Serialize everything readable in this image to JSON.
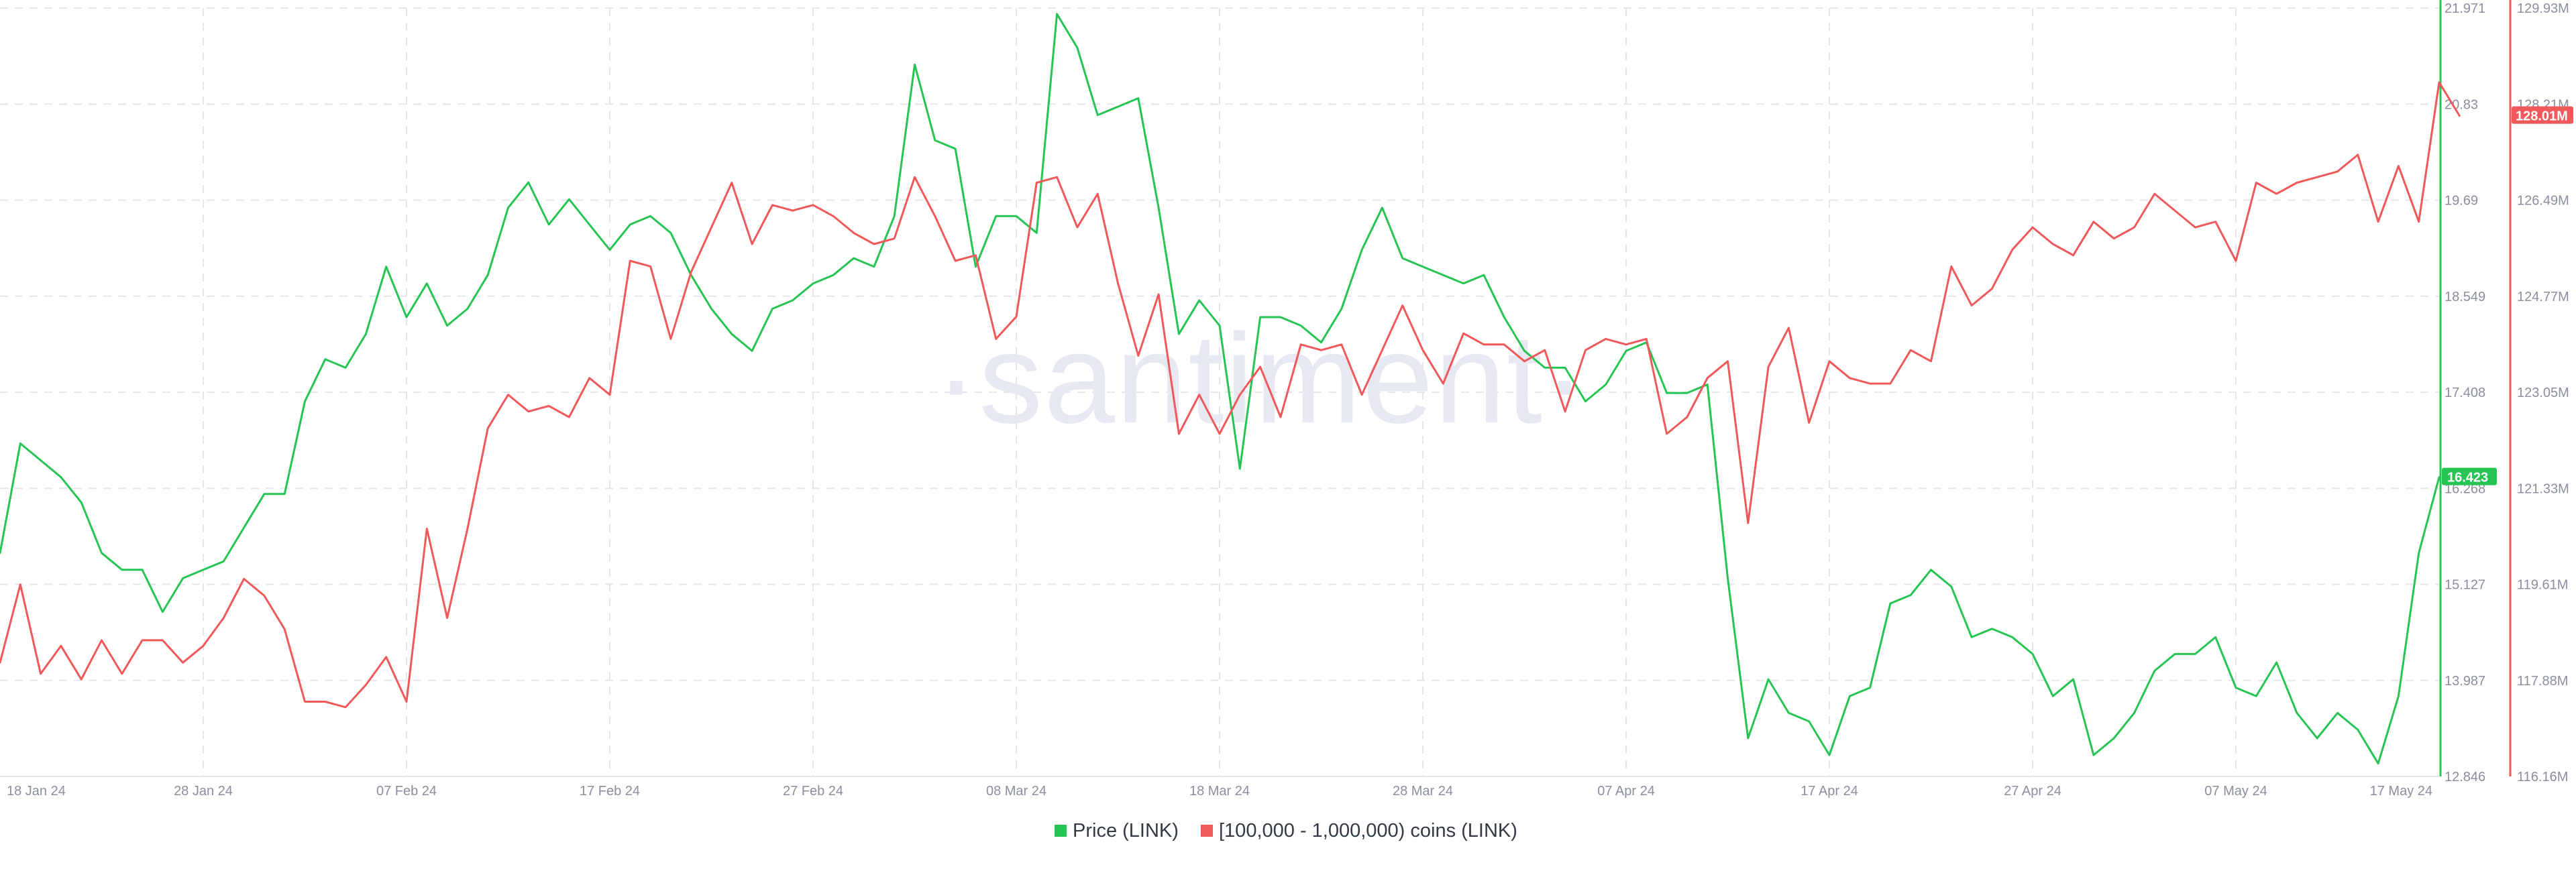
{
  "watermark": "·santiment·",
  "colors": {
    "price": "#26c453",
    "holders": "#f0585a",
    "grid": "#e4e6eb",
    "axis_text": "#8a8f9e",
    "watermark": "#e6e8f2"
  },
  "chart_data": {
    "type": "line",
    "title": "",
    "x_tick_labels": [
      "18 Jan 24",
      "28 Jan 24",
      "07 Feb 24",
      "17 Feb 24",
      "27 Feb 24",
      "08 Mar 24",
      "18 Mar 24",
      "28 Mar 24",
      "07 Apr 24",
      "17 Apr 24",
      "27 Apr 24",
      "07 May 24",
      "17 May 24"
    ],
    "x_range": [
      "2024-01-18",
      "2024-05-17"
    ],
    "legend_position": "bottom-center",
    "grid": true,
    "y_left_ticks": [
      "21.971",
      "20.83",
      "19.69",
      "18.549",
      "17.408",
      "16.268",
      "15.127",
      "13.987",
      "12.846"
    ],
    "y_left_range": [
      12.846,
      21.971
    ],
    "y_right_ticks": [
      "129.93M",
      "128.21M",
      "126.49M",
      "124.77M",
      "123.05M",
      "121.33M",
      "119.61M",
      "117.88M",
      "116.16M"
    ],
    "y_right_range": [
      116.16,
      129.93
    ],
    "series": [
      {
        "name": "Price (LINK)",
        "axis": "left",
        "last_value_label": "16.423",
        "points": [
          [
            "2024-01-18",
            15.5
          ],
          [
            "2024-01-19",
            16.8
          ],
          [
            "2024-01-20",
            16.6
          ],
          [
            "2024-01-21",
            16.4
          ],
          [
            "2024-01-22",
            16.1
          ],
          [
            "2024-01-23",
            15.5
          ],
          [
            "2024-01-24",
            15.3
          ],
          [
            "2024-01-25",
            15.3
          ],
          [
            "2024-01-26",
            14.8
          ],
          [
            "2024-01-27",
            15.2
          ],
          [
            "2024-01-28",
            15.3
          ],
          [
            "2024-01-29",
            15.4
          ],
          [
            "2024-01-30",
            15.8
          ],
          [
            "2024-01-31",
            16.2
          ],
          [
            "2024-02-01",
            16.2
          ],
          [
            "2024-02-02",
            17.3
          ],
          [
            "2024-02-03",
            17.8
          ],
          [
            "2024-02-04",
            17.7
          ],
          [
            "2024-02-05",
            18.1
          ],
          [
            "2024-02-06",
            18.9
          ],
          [
            "2024-02-07",
            18.3
          ],
          [
            "2024-02-08",
            18.7
          ],
          [
            "2024-02-09",
            18.2
          ],
          [
            "2024-02-10",
            18.4
          ],
          [
            "2024-02-11",
            18.8
          ],
          [
            "2024-02-12",
            19.6
          ],
          [
            "2024-02-13",
            19.9
          ],
          [
            "2024-02-14",
            19.4
          ],
          [
            "2024-02-15",
            19.7
          ],
          [
            "2024-02-16",
            19.4
          ],
          [
            "2024-02-17",
            19.1
          ],
          [
            "2024-02-18",
            19.4
          ],
          [
            "2024-02-19",
            19.5
          ],
          [
            "2024-02-20",
            19.3
          ],
          [
            "2024-02-21",
            18.8
          ],
          [
            "2024-02-22",
            18.4
          ],
          [
            "2024-02-23",
            18.1
          ],
          [
            "2024-02-24",
            17.9
          ],
          [
            "2024-02-25",
            18.4
          ],
          [
            "2024-02-26",
            18.5
          ],
          [
            "2024-02-27",
            18.7
          ],
          [
            "2024-02-28",
            18.8
          ],
          [
            "2024-02-29",
            19.0
          ],
          [
            "2024-03-01",
            18.9
          ],
          [
            "2024-03-02",
            19.5
          ],
          [
            "2024-03-03",
            21.3
          ],
          [
            "2024-03-04",
            20.4
          ],
          [
            "2024-03-05",
            20.3
          ],
          [
            "2024-03-06",
            18.9
          ],
          [
            "2024-03-07",
            19.5
          ],
          [
            "2024-03-08",
            19.5
          ],
          [
            "2024-03-09",
            19.3
          ],
          [
            "2024-03-10",
            21.9
          ],
          [
            "2024-03-11",
            21.5
          ],
          [
            "2024-03-12",
            20.7
          ],
          [
            "2024-03-13",
            20.8
          ],
          [
            "2024-03-14",
            20.9
          ],
          [
            "2024-03-15",
            19.6
          ],
          [
            "2024-03-16",
            18.1
          ],
          [
            "2024-03-17",
            18.5
          ],
          [
            "2024-03-18",
            18.2
          ],
          [
            "2024-03-19",
            16.5
          ],
          [
            "2024-03-20",
            18.3
          ],
          [
            "2024-03-21",
            18.3
          ],
          [
            "2024-03-22",
            18.2
          ],
          [
            "2024-03-23",
            18.0
          ],
          [
            "2024-03-24",
            18.4
          ],
          [
            "2024-03-25",
            19.1
          ],
          [
            "2024-03-26",
            19.6
          ],
          [
            "2024-03-27",
            19.0
          ],
          [
            "2024-03-28",
            18.9
          ],
          [
            "2024-03-29",
            18.8
          ],
          [
            "2024-03-30",
            18.7
          ],
          [
            "2024-03-31",
            18.8
          ],
          [
            "2024-04-01",
            18.3
          ],
          [
            "2024-04-02",
            17.9
          ],
          [
            "2024-04-03",
            17.7
          ],
          [
            "2024-04-04",
            17.7
          ],
          [
            "2024-04-05",
            17.3
          ],
          [
            "2024-04-06",
            17.5
          ],
          [
            "2024-04-07",
            17.9
          ],
          [
            "2024-04-08",
            18.0
          ],
          [
            "2024-04-09",
            17.4
          ],
          [
            "2024-04-10",
            17.4
          ],
          [
            "2024-04-11",
            17.5
          ],
          [
            "2024-04-12",
            15.2
          ],
          [
            "2024-04-13",
            13.3
          ],
          [
            "2024-04-14",
            14.0
          ],
          [
            "2024-04-15",
            13.6
          ],
          [
            "2024-04-16",
            13.5
          ],
          [
            "2024-04-17",
            13.1
          ],
          [
            "2024-04-18",
            13.8
          ],
          [
            "2024-04-19",
            13.9
          ],
          [
            "2024-04-20",
            14.9
          ],
          [
            "2024-04-21",
            15.0
          ],
          [
            "2024-04-22",
            15.3
          ],
          [
            "2024-04-23",
            15.1
          ],
          [
            "2024-04-24",
            14.5
          ],
          [
            "2024-04-25",
            14.6
          ],
          [
            "2024-04-26",
            14.5
          ],
          [
            "2024-04-27",
            14.3
          ],
          [
            "2024-04-28",
            13.8
          ],
          [
            "2024-04-29",
            14.0
          ],
          [
            "2024-04-30",
            13.1
          ],
          [
            "2024-05-01",
            13.3
          ],
          [
            "2024-05-02",
            13.6
          ],
          [
            "2024-05-03",
            14.1
          ],
          [
            "2024-05-04",
            14.3
          ],
          [
            "2024-05-05",
            14.3
          ],
          [
            "2024-05-06",
            14.5
          ],
          [
            "2024-05-07",
            13.9
          ],
          [
            "2024-05-08",
            13.8
          ],
          [
            "2024-05-09",
            14.2
          ],
          [
            "2024-05-10",
            13.6
          ],
          [
            "2024-05-11",
            13.3
          ],
          [
            "2024-05-12",
            13.6
          ],
          [
            "2024-05-13",
            13.4
          ],
          [
            "2024-05-14",
            13.0
          ],
          [
            "2024-05-15",
            13.8
          ],
          [
            "2024-05-16",
            15.5
          ],
          [
            "2024-05-17",
            16.4
          ]
        ]
      },
      {
        "name": "[100,000  - 1,000,000) coins (LINK)",
        "axis": "right",
        "last_value_label": "128.01M",
        "points": [
          [
            "2024-01-18",
            118.2
          ],
          [
            "2024-01-19",
            119.6
          ],
          [
            "2024-01-20",
            118.0
          ],
          [
            "2024-01-21",
            118.5
          ],
          [
            "2024-01-22",
            117.9
          ],
          [
            "2024-01-23",
            118.6
          ],
          [
            "2024-01-24",
            118.0
          ],
          [
            "2024-01-25",
            118.6
          ],
          [
            "2024-01-26",
            118.6
          ],
          [
            "2024-01-27",
            118.2
          ],
          [
            "2024-01-28",
            118.5
          ],
          [
            "2024-01-29",
            119.0
          ],
          [
            "2024-01-30",
            119.7
          ],
          [
            "2024-01-31",
            119.4
          ],
          [
            "2024-02-01",
            118.8
          ],
          [
            "2024-02-02",
            117.5
          ],
          [
            "2024-02-03",
            117.5
          ],
          [
            "2024-02-04",
            117.4
          ],
          [
            "2024-02-05",
            117.8
          ],
          [
            "2024-02-06",
            118.3
          ],
          [
            "2024-02-07",
            117.5
          ],
          [
            "2024-02-08",
            120.6
          ],
          [
            "2024-02-09",
            119.0
          ],
          [
            "2024-02-10",
            120.6
          ],
          [
            "2024-02-11",
            122.4
          ],
          [
            "2024-02-12",
            123.0
          ],
          [
            "2024-02-13",
            122.7
          ],
          [
            "2024-02-14",
            122.8
          ],
          [
            "2024-02-15",
            122.6
          ],
          [
            "2024-02-16",
            123.3
          ],
          [
            "2024-02-17",
            123.0
          ],
          [
            "2024-02-18",
            125.4
          ],
          [
            "2024-02-19",
            125.3
          ],
          [
            "2024-02-20",
            124.0
          ],
          [
            "2024-02-21",
            125.2
          ],
          [
            "2024-02-22",
            126.0
          ],
          [
            "2024-02-23",
            126.8
          ],
          [
            "2024-02-24",
            125.7
          ],
          [
            "2024-02-25",
            126.4
          ],
          [
            "2024-02-26",
            126.3
          ],
          [
            "2024-02-27",
            126.4
          ],
          [
            "2024-02-28",
            126.2
          ],
          [
            "2024-02-29",
            125.9
          ],
          [
            "2024-03-01",
            125.7
          ],
          [
            "2024-03-02",
            125.8
          ],
          [
            "2024-03-03",
            126.9
          ],
          [
            "2024-03-04",
            126.2
          ],
          [
            "2024-03-05",
            125.4
          ],
          [
            "2024-03-06",
            125.5
          ],
          [
            "2024-03-07",
            124.0
          ],
          [
            "2024-03-08",
            124.4
          ],
          [
            "2024-03-09",
            126.8
          ],
          [
            "2024-03-10",
            126.9
          ],
          [
            "2024-03-11",
            126.0
          ],
          [
            "2024-03-12",
            126.6
          ],
          [
            "2024-03-13",
            125.0
          ],
          [
            "2024-03-14",
            123.7
          ],
          [
            "2024-03-15",
            124.8
          ],
          [
            "2024-03-16",
            122.3
          ],
          [
            "2024-03-17",
            123.0
          ],
          [
            "2024-03-18",
            122.3
          ],
          [
            "2024-03-19",
            123.0
          ],
          [
            "2024-03-20",
            123.5
          ],
          [
            "2024-03-21",
            122.6
          ],
          [
            "2024-03-22",
            123.9
          ],
          [
            "2024-03-23",
            123.8
          ],
          [
            "2024-03-24",
            123.9
          ],
          [
            "2024-03-25",
            123.0
          ],
          [
            "2024-03-26",
            123.8
          ],
          [
            "2024-03-27",
            124.6
          ],
          [
            "2024-03-28",
            123.8
          ],
          [
            "2024-03-29",
            123.2
          ],
          [
            "2024-03-30",
            124.1
          ],
          [
            "2024-03-31",
            123.9
          ],
          [
            "2024-04-01",
            123.9
          ],
          [
            "2024-04-02",
            123.6
          ],
          [
            "2024-04-03",
            123.8
          ],
          [
            "2024-04-04",
            122.7
          ],
          [
            "2024-04-05",
            123.8
          ],
          [
            "2024-04-06",
            124.0
          ],
          [
            "2024-04-07",
            123.9
          ],
          [
            "2024-04-08",
            124.0
          ],
          [
            "2024-04-09",
            122.3
          ],
          [
            "2024-04-10",
            122.6
          ],
          [
            "2024-04-11",
            123.3
          ],
          [
            "2024-04-12",
            123.6
          ],
          [
            "2024-04-13",
            120.7
          ],
          [
            "2024-04-14",
            123.5
          ],
          [
            "2024-04-15",
            124.2
          ],
          [
            "2024-04-16",
            122.5
          ],
          [
            "2024-04-17",
            123.6
          ],
          [
            "2024-04-18",
            123.3
          ],
          [
            "2024-04-19",
            123.2
          ],
          [
            "2024-04-20",
            123.2
          ],
          [
            "2024-04-21",
            123.8
          ],
          [
            "2024-04-22",
            123.6
          ],
          [
            "2024-04-23",
            125.3
          ],
          [
            "2024-04-24",
            124.6
          ],
          [
            "2024-04-25",
            124.9
          ],
          [
            "2024-04-26",
            125.6
          ],
          [
            "2024-04-27",
            126.0
          ],
          [
            "2024-04-28",
            125.7
          ],
          [
            "2024-04-29",
            125.5
          ],
          [
            "2024-04-30",
            126.1
          ],
          [
            "2024-05-01",
            125.8
          ],
          [
            "2024-05-02",
            126.0
          ],
          [
            "2024-05-03",
            126.6
          ],
          [
            "2024-05-04",
            126.3
          ],
          [
            "2024-05-05",
            126.0
          ],
          [
            "2024-05-06",
            126.1
          ],
          [
            "2024-05-07",
            125.4
          ],
          [
            "2024-05-08",
            126.8
          ],
          [
            "2024-05-09",
            126.6
          ],
          [
            "2024-05-10",
            126.8
          ],
          [
            "2024-05-11",
            126.9
          ],
          [
            "2024-05-12",
            127.0
          ],
          [
            "2024-05-13",
            127.3
          ],
          [
            "2024-05-14",
            126.1
          ],
          [
            "2024-05-15",
            127.1
          ],
          [
            "2024-05-16",
            126.1
          ],
          [
            "2024-05-17",
            128.6
          ],
          [
            "2024-05-18",
            128.0
          ]
        ]
      }
    ]
  }
}
